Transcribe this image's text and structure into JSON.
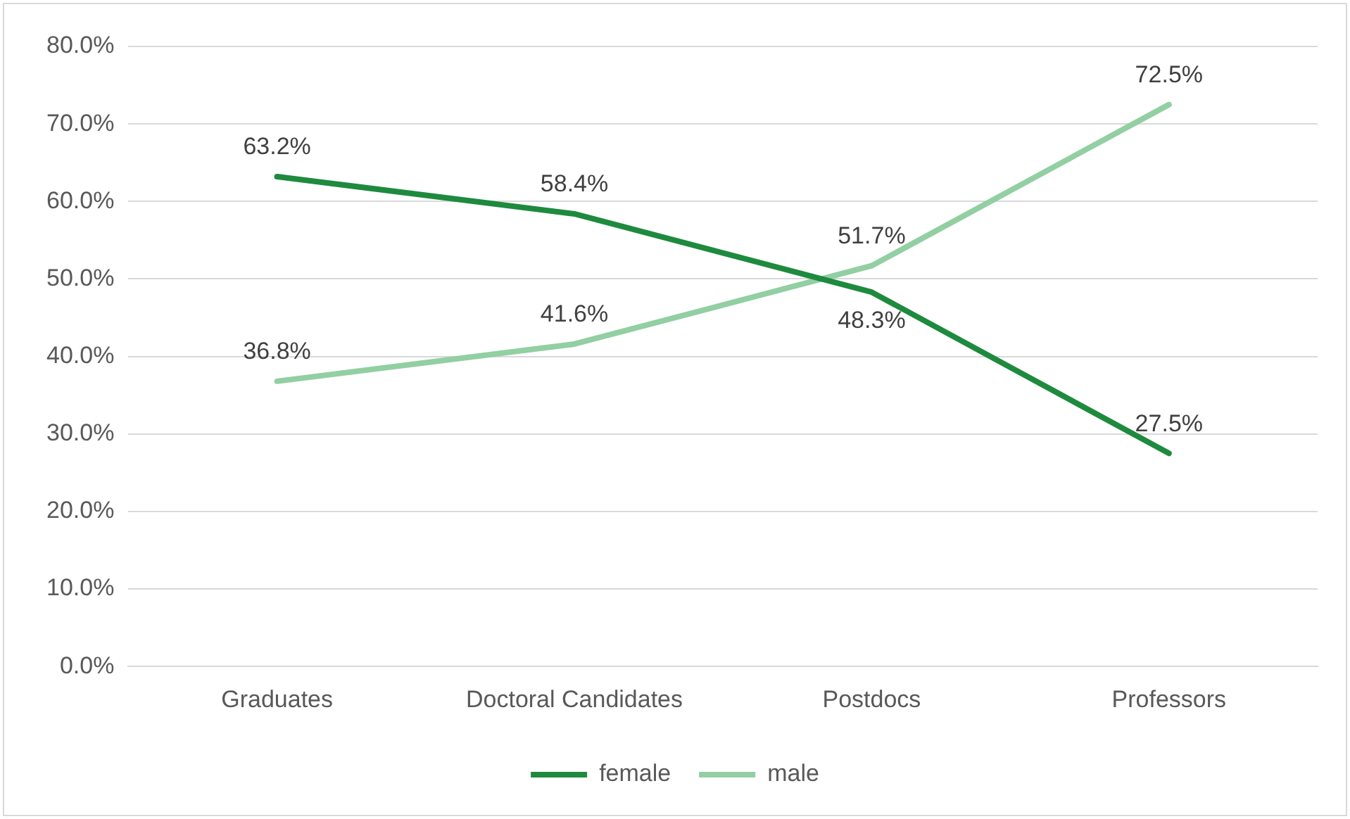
{
  "chart_data": {
    "type": "line",
    "categories": [
      "Graduates",
      "Doctoral Candidates",
      "Postdocs",
      "Professors"
    ],
    "series": [
      {
        "name": "female",
        "color": "#1e8a3e",
        "values": [
          63.2,
          58.4,
          48.3,
          27.5
        ],
        "value_labels": [
          "63.2%",
          "58.4%",
          "48.3%",
          "27.5%"
        ]
      },
      {
        "name": "male",
        "color": "#92cfa2",
        "values": [
          36.8,
          41.6,
          51.7,
          72.5
        ],
        "value_labels": [
          "36.8%",
          "41.6%",
          "51.7%",
          "72.5%"
        ]
      }
    ],
    "ylim": [
      0,
      80
    ],
    "yticks": [
      {
        "value": 0,
        "label": "0.0%"
      },
      {
        "value": 10,
        "label": "10.0%"
      },
      {
        "value": 20,
        "label": "20.0%"
      },
      {
        "value": 30,
        "label": "30.0%"
      },
      {
        "value": 40,
        "label": "40.0%"
      },
      {
        "value": 50,
        "label": "50.0%"
      },
      {
        "value": 60,
        "label": "60.0%"
      },
      {
        "value": 70,
        "label": "70.0%"
      },
      {
        "value": 80,
        "label": "80.0%"
      }
    ],
    "grid": "y",
    "legend": "bottom",
    "marker": "none",
    "line_style": "solid"
  }
}
